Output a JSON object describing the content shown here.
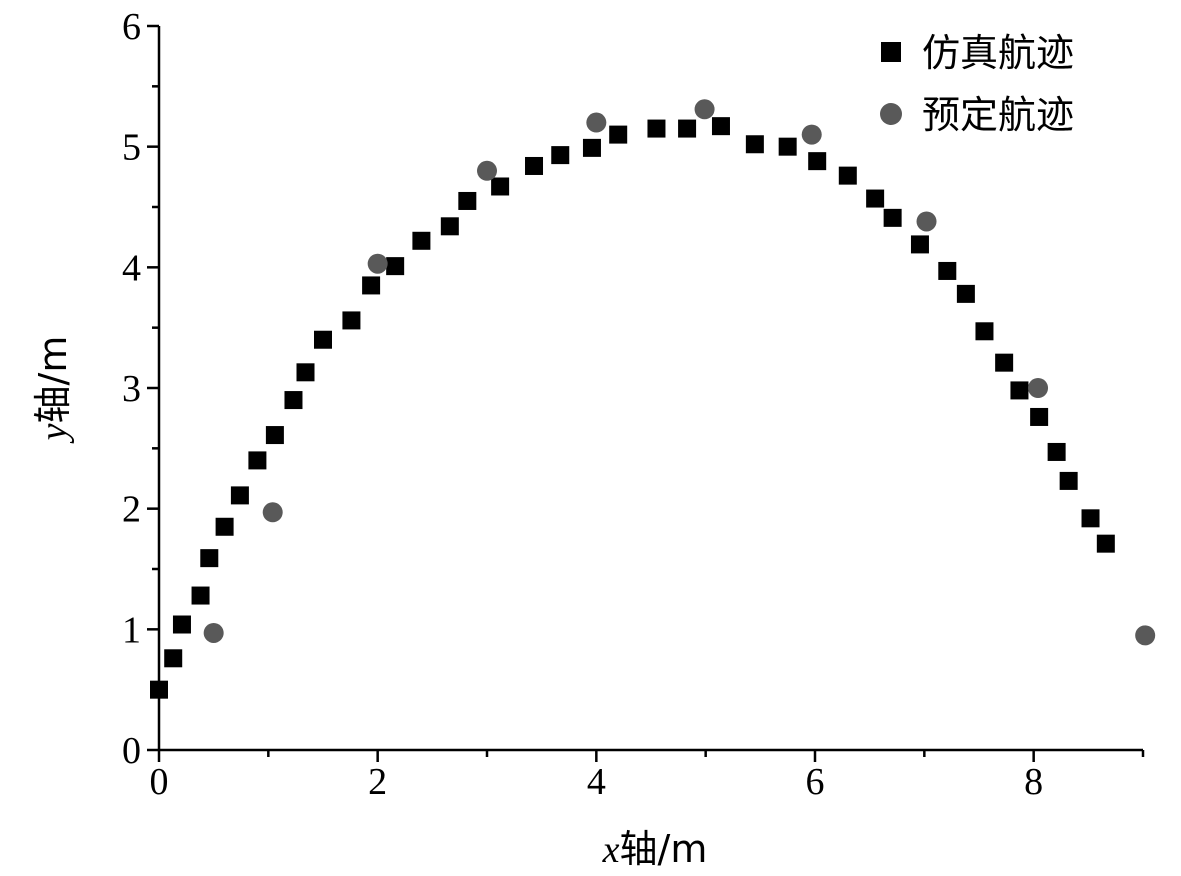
{
  "chart_data": {
    "type": "scatter",
    "xlabel_var": "x",
    "xlabel_rest": "轴/m",
    "ylabel_var": "y",
    "ylabel_rest": "轴/m",
    "xlim": [
      0,
      9
    ],
    "ylim": [
      0,
      6
    ],
    "x_ticks": [
      0,
      2,
      4,
      6,
      8
    ],
    "y_ticks": [
      0,
      1,
      2,
      3,
      4,
      5,
      6
    ],
    "grid": false,
    "legend_position": "top-right",
    "series": [
      {
        "name": "仿真航迹",
        "marker": "square",
        "color": "#000000",
        "points": [
          [
            0.0,
            0.5
          ],
          [
            0.13,
            0.76
          ],
          [
            0.21,
            1.04
          ],
          [
            0.38,
            1.28
          ],
          [
            0.46,
            1.59
          ],
          [
            0.6,
            1.85
          ],
          [
            0.74,
            2.11
          ],
          [
            0.9,
            2.4
          ],
          [
            1.06,
            2.61
          ],
          [
            1.23,
            2.9
          ],
          [
            1.34,
            3.13
          ],
          [
            1.5,
            3.4
          ],
          [
            1.76,
            3.56
          ],
          [
            1.94,
            3.85
          ],
          [
            2.16,
            4.01
          ],
          [
            2.4,
            4.22
          ],
          [
            2.66,
            4.34
          ],
          [
            2.82,
            4.55
          ],
          [
            3.12,
            4.67
          ],
          [
            3.43,
            4.84
          ],
          [
            3.67,
            4.93
          ],
          [
            3.96,
            4.99
          ],
          [
            4.2,
            5.1
          ],
          [
            4.55,
            5.15
          ],
          [
            4.83,
            5.15
          ],
          [
            5.14,
            5.17
          ],
          [
            5.45,
            5.02
          ],
          [
            5.75,
            5.0
          ],
          [
            6.02,
            4.88
          ],
          [
            6.3,
            4.76
          ],
          [
            6.55,
            4.57
          ],
          [
            6.71,
            4.41
          ],
          [
            6.96,
            4.19
          ],
          [
            7.21,
            3.97
          ],
          [
            7.38,
            3.78
          ],
          [
            7.55,
            3.47
          ],
          [
            7.73,
            3.21
          ],
          [
            7.87,
            2.98
          ],
          [
            8.05,
            2.76
          ],
          [
            8.21,
            2.47
          ],
          [
            8.32,
            2.23
          ],
          [
            8.52,
            1.92
          ],
          [
            8.66,
            1.71
          ]
        ]
      },
      {
        "name": "预定航迹",
        "marker": "circle",
        "color": "#595959",
        "points": [
          [
            0.5,
            0.97
          ],
          [
            1.04,
            1.97
          ],
          [
            2.0,
            4.03
          ],
          [
            3.0,
            4.8
          ],
          [
            4.0,
            5.2
          ],
          [
            4.99,
            5.31
          ],
          [
            5.97,
            5.1
          ],
          [
            7.02,
            4.38
          ],
          [
            8.04,
            3.0
          ],
          [
            9.02,
            0.95
          ]
        ]
      }
    ]
  }
}
